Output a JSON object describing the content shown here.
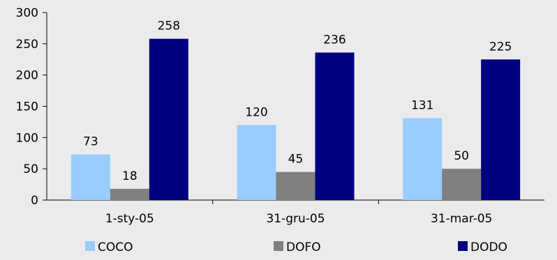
{
  "chart_data": {
    "type": "bar",
    "categories": [
      "1-sty-05",
      "31-gru-05",
      "31-mar-05"
    ],
    "series": [
      {
        "name": "COCO",
        "values": [
          73,
          120,
          131
        ],
        "color": "#99ccff"
      },
      {
        "name": "DOFO",
        "values": [
          18,
          45,
          50
        ],
        "color": "#808080"
      },
      {
        "name": "DODO",
        "values": [
          258,
          236,
          225
        ],
        "color": "#000080"
      }
    ],
    "ylim": [
      0,
      300
    ],
    "yticks": [
      0,
      50,
      100,
      150,
      200,
      250,
      300
    ],
    "grid": false,
    "legend_position": "bottom",
    "background": "#ebebeb"
  }
}
